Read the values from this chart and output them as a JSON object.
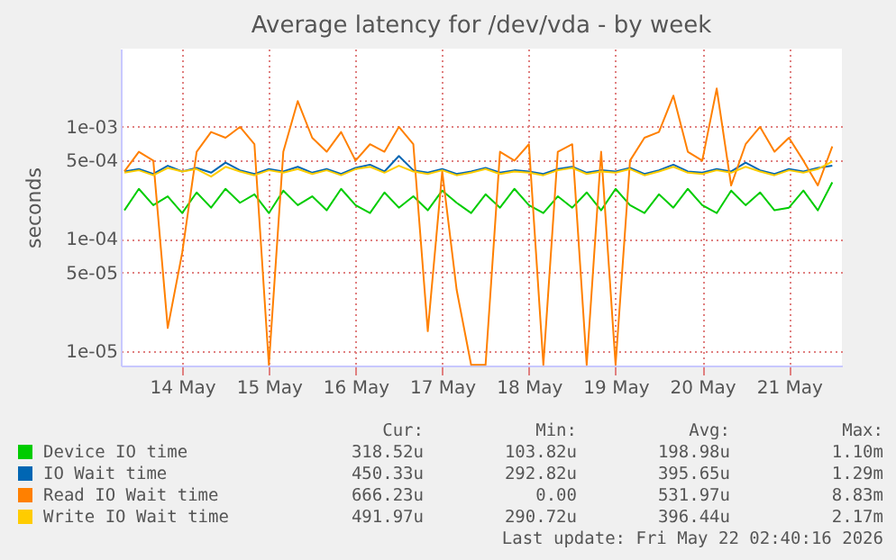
{
  "chart_data": {
    "type": "line",
    "title": "Average latency for /dev/vda - by week",
    "ylabel": "seconds",
    "log": "y",
    "grid": true,
    "legend": "bottom",
    "xlim": [
      "2026-05-13T19:00",
      "2026-05-22T02:40"
    ],
    "xticks": [
      {
        "value": "2026-05-14T12:00",
        "label": "14 May"
      },
      {
        "value": "2026-05-15T12:00",
        "label": "15 May"
      },
      {
        "value": "2026-05-16T12:00",
        "label": "16 May"
      },
      {
        "value": "2026-05-17T12:00",
        "label": "17 May"
      },
      {
        "value": "2026-05-18T12:00",
        "label": "18 May"
      },
      {
        "value": "2026-05-19T12:00",
        "label": "19 May"
      },
      {
        "value": "2026-05-20T12:00",
        "label": "20 May"
      },
      {
        "value": "2026-05-21T12:00",
        "label": "21 May"
      }
    ],
    "ylim": [
      7.4e-06,
      0.005
    ],
    "yticks": [
      {
        "value": 1e-05,
        "label": "1e-05"
      },
      {
        "value": 5e-05,
        "label": "5e-05"
      },
      {
        "value": 0.0001,
        "label": "1e-04"
      },
      {
        "value": 0.0005,
        "label": "5e-04"
      },
      {
        "value": 0.001,
        "label": "1e-03"
      }
    ],
    "x": [
      "2026-05-13T20:00",
      "2026-05-14T00:00",
      "2026-05-14T04:00",
      "2026-05-14T08:00",
      "2026-05-14T12:00",
      "2026-05-14T16:00",
      "2026-05-14T20:00",
      "2026-05-15T00:00",
      "2026-05-15T04:00",
      "2026-05-15T08:00",
      "2026-05-15T12:00",
      "2026-05-15T16:00",
      "2026-05-15T20:00",
      "2026-05-16T00:00",
      "2026-05-16T04:00",
      "2026-05-16T08:00",
      "2026-05-16T12:00",
      "2026-05-16T16:00",
      "2026-05-16T20:00",
      "2026-05-17T00:00",
      "2026-05-17T04:00",
      "2026-05-17T08:00",
      "2026-05-17T12:00",
      "2026-05-17T16:00",
      "2026-05-17T20:00",
      "2026-05-18T00:00",
      "2026-05-18T04:00",
      "2026-05-18T08:00",
      "2026-05-18T12:00",
      "2026-05-18T16:00",
      "2026-05-18T20:00",
      "2026-05-19T00:00",
      "2026-05-19T04:00",
      "2026-05-19T08:00",
      "2026-05-19T12:00",
      "2026-05-19T16:00",
      "2026-05-19T20:00",
      "2026-05-20T00:00",
      "2026-05-20T04:00",
      "2026-05-20T08:00",
      "2026-05-20T12:00",
      "2026-05-20T16:00",
      "2026-05-20T20:00",
      "2026-05-21T00:00",
      "2026-05-21T04:00",
      "2026-05-21T08:00",
      "2026-05-21T12:00",
      "2026-05-21T16:00",
      "2026-05-21T20:00",
      "2026-05-22T00:00"
    ],
    "series": [
      {
        "name": "Device IO time",
        "color": "#00cc00",
        "values": [
          0.00018,
          0.00028,
          0.0002,
          0.00024,
          0.00017,
          0.00026,
          0.00019,
          0.00028,
          0.00021,
          0.00025,
          0.00017,
          0.00027,
          0.0002,
          0.00024,
          0.00018,
          0.00028,
          0.0002,
          0.00017,
          0.00026,
          0.00019,
          0.00024,
          0.00018,
          0.00027,
          0.00021,
          0.00017,
          0.00025,
          0.00019,
          0.00028,
          0.0002,
          0.00017,
          0.00024,
          0.00019,
          0.00026,
          0.00018,
          0.00028,
          0.0002,
          0.00017,
          0.00025,
          0.00019,
          0.00028,
          0.0002,
          0.00017,
          0.00027,
          0.0002,
          0.00026,
          0.00018,
          0.00019,
          0.00027,
          0.00018,
          0.00032
        ]
      },
      {
        "name": "IO Wait time",
        "color": "#0066b3",
        "values": [
          0.0004,
          0.00042,
          0.00038,
          0.00045,
          0.0004,
          0.00043,
          0.00039,
          0.00048,
          0.00041,
          0.00038,
          0.00042,
          0.0004,
          0.00044,
          0.00039,
          0.00042,
          0.00038,
          0.00043,
          0.00046,
          0.0004,
          0.00055,
          0.00041,
          0.00039,
          0.00042,
          0.00038,
          0.0004,
          0.00043,
          0.00039,
          0.00041,
          0.0004,
          0.00038,
          0.00042,
          0.00044,
          0.00039,
          0.00041,
          0.0004,
          0.00043,
          0.00038,
          0.00041,
          0.00046,
          0.0004,
          0.00039,
          0.00042,
          0.0004,
          0.00048,
          0.00041,
          0.00038,
          0.00042,
          0.0004,
          0.00043,
          0.00045
        ]
      },
      {
        "name": "Read IO Wait time",
        "color": "#ff8000",
        "values": [
          0.0004,
          0.0006,
          0.0005,
          1.6e-05,
          7.5e-05,
          0.0006,
          0.0009,
          0.0008,
          0.001,
          0.0007,
          7.5e-06,
          0.0006,
          0.0017,
          0.0008,
          0.0006,
          0.0009,
          0.0005,
          0.0007,
          0.0006,
          0.001,
          0.0007,
          1.5e-05,
          0.0004,
          3.5e-05,
          7.5e-06,
          7.5e-06,
          0.0006,
          0.0005,
          0.0007,
          7.5e-06,
          0.0006,
          0.0007,
          7.5e-06,
          0.0006,
          7.5e-06,
          0.0005,
          0.0008,
          0.0009,
          0.0019,
          0.0006,
          0.0005,
          0.0022,
          0.0003,
          0.0007,
          0.001,
          0.0006,
          0.0008,
          0.0005,
          0.0003,
          0.00067
        ]
      },
      {
        "name": "Write IO Wait time",
        "color": "#ffcc00",
        "values": [
          0.00039,
          0.00041,
          0.00037,
          0.00043,
          0.0004,
          0.00042,
          0.00036,
          0.00044,
          0.0004,
          0.00037,
          0.00041,
          0.00039,
          0.00042,
          0.00038,
          0.00041,
          0.00037,
          0.00042,
          0.00044,
          0.00039,
          0.00045,
          0.0004,
          0.00038,
          0.00041,
          0.00037,
          0.00039,
          0.00042,
          0.00038,
          0.0004,
          0.00039,
          0.00037,
          0.00041,
          0.00043,
          0.00038,
          0.0004,
          0.00039,
          0.00042,
          0.00037,
          0.0004,
          0.00044,
          0.00039,
          0.00038,
          0.00041,
          0.00039,
          0.00044,
          0.0004,
          0.00037,
          0.00041,
          0.00039,
          0.00042,
          0.00049
        ]
      }
    ],
    "annotations": [
      "Cur:",
      "Min:",
      "Avg:",
      "Max:",
      "318.52u",
      "103.82u",
      "198.98u",
      "1.10m",
      "450.33u",
      "292.82u",
      "395.65u",
      "1.29m",
      "666.23u",
      "0.00",
      "531.97u",
      "8.83m",
      "491.97u",
      "290.72u",
      "396.44u",
      "2.17m",
      "Last update: Fri May 22 02:40:16 2026"
    ]
  }
}
